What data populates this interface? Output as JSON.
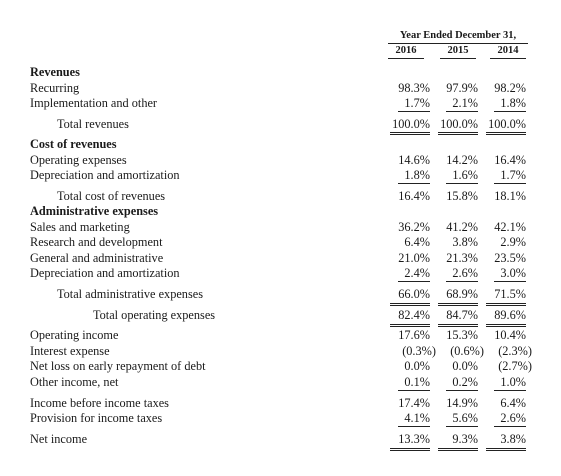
{
  "header": {
    "title": "Year Ended December 31,",
    "years": [
      "2016",
      "2015",
      "2014"
    ]
  },
  "rows": [
    {
      "label": "Revenues",
      "values": [
        "",
        "",
        ""
      ]
    },
    {
      "label": "Recurring",
      "values": [
        "98.3%",
        "97.9%",
        "98.2%"
      ]
    },
    {
      "label": "Implementation and other",
      "values": [
        "1.7%",
        "2.1%",
        "1.8%"
      ]
    },
    {
      "label": "Total revenues",
      "values": [
        "100.0%",
        "100.0%",
        "100.0%"
      ]
    },
    {
      "label": "Cost of revenues",
      "values": [
        "",
        "",
        ""
      ]
    },
    {
      "label": "Operating expenses",
      "values": [
        "14.6%",
        "14.2%",
        "16.4%"
      ]
    },
    {
      "label": "Depreciation and amortization",
      "values": [
        "1.8%",
        "1.6%",
        "1.7%"
      ]
    },
    {
      "label": "Total cost of revenues",
      "values": [
        "16.4%",
        "15.8%",
        "18.1%"
      ]
    },
    {
      "label": "Administrative expenses",
      "values": [
        "",
        "",
        ""
      ]
    },
    {
      "label": "Sales and marketing",
      "values": [
        "36.2%",
        "41.2%",
        "42.1%"
      ]
    },
    {
      "label": "Research and development",
      "values": [
        "6.4%",
        "3.8%",
        "2.9%"
      ]
    },
    {
      "label": "General and administrative",
      "values": [
        "21.0%",
        "21.3%",
        "23.5%"
      ]
    },
    {
      "label": "Depreciation and amortization",
      "values": [
        "2.4%",
        "2.6%",
        "3.0%"
      ]
    },
    {
      "label": "Total administrative expenses",
      "values": [
        "66.0%",
        "68.9%",
        "71.5%"
      ]
    },
    {
      "label": "Total operating expenses",
      "values": [
        "82.4%",
        "84.7%",
        "89.6%"
      ]
    },
    {
      "label": "Operating income",
      "values": [
        "17.6%",
        "15.3%",
        "10.4%"
      ]
    },
    {
      "label": "Interest expense",
      "values": [
        "(0.3%)",
        "(0.6%)",
        "(2.3%)"
      ]
    },
    {
      "label": "Net loss on early repayment of debt",
      "values": [
        "0.0%",
        "0.0%",
        "(2.7%)"
      ]
    },
    {
      "label": "Other income, net",
      "values": [
        "0.1%",
        "0.2%",
        "1.0%"
      ]
    },
    {
      "label": "Income before income taxes",
      "values": [
        "17.4%",
        "14.9%",
        "6.4%"
      ]
    },
    {
      "label": "Provision for income taxes",
      "values": [
        "4.1%",
        "5.6%",
        "2.6%"
      ]
    },
    {
      "label": "Net income",
      "values": [
        "13.3%",
        "9.3%",
        "3.8%"
      ]
    }
  ]
}
